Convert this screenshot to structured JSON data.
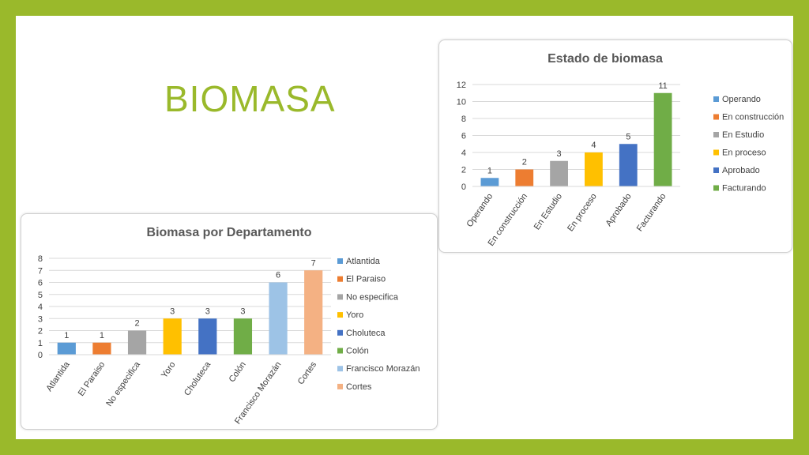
{
  "slide": {
    "title": "BIOMASA"
  },
  "chart_data": [
    {
      "id": "estado",
      "type": "bar",
      "title": "Estado de biomasa",
      "categories": [
        "Operando",
        "En construcción",
        "En Estudio",
        "En proceso",
        "Aprobado",
        "Facturando"
      ],
      "values": [
        1,
        2,
        3,
        4,
        5,
        11
      ],
      "colors": [
        "#5b9bd5",
        "#ed7d31",
        "#a5a5a5",
        "#ffc000",
        "#4472c4",
        "#70ad47"
      ],
      "ylim": [
        0,
        12
      ],
      "yticks": [
        0,
        2,
        4,
        6,
        8,
        10,
        12
      ],
      "grid": true,
      "legend": "right",
      "data_labels": true
    },
    {
      "id": "depto",
      "type": "bar",
      "title": "Biomasa por Departamento",
      "categories": [
        "Atlantida",
        "El Paraiso",
        "No especifica",
        "Yoro",
        "Choluteca",
        "Colón",
        "Francisco Morazán",
        "Cortes"
      ],
      "values": [
        1,
        1,
        2,
        3,
        3,
        3,
        6,
        7
      ],
      "colors": [
        "#5b9bd5",
        "#ed7d31",
        "#a5a5a5",
        "#ffc000",
        "#4472c4",
        "#70ad47",
        "#9dc3e6",
        "#f4b183"
      ],
      "ylim": [
        0,
        8
      ],
      "yticks": [
        0,
        1,
        2,
        3,
        4,
        5,
        6,
        7,
        8
      ],
      "grid": true,
      "legend": "right",
      "data_labels": true
    }
  ]
}
